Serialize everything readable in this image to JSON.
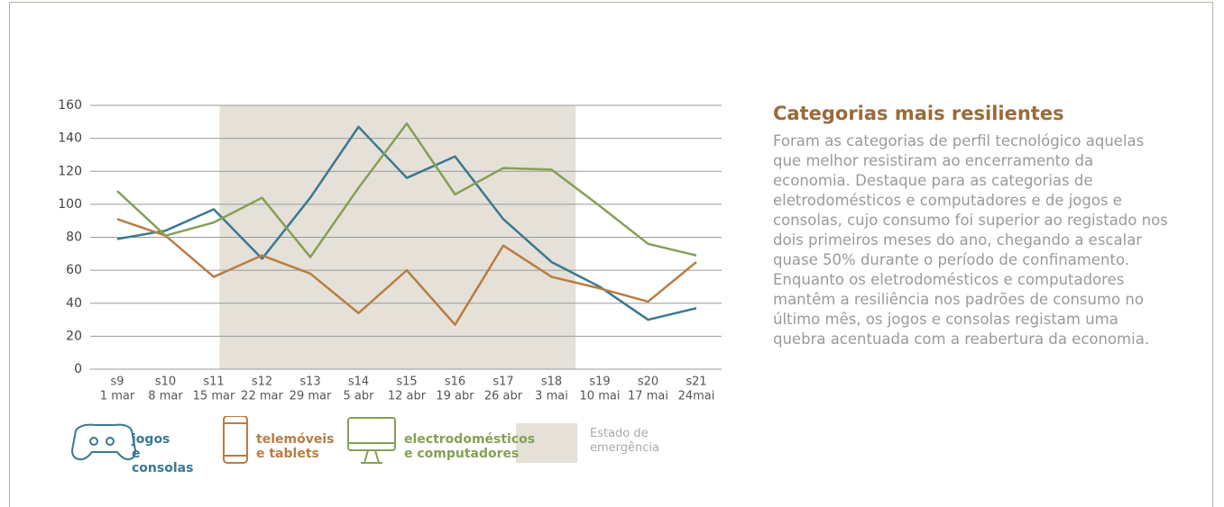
{
  "chart_data": {
    "type": "line",
    "categories": [
      "s9",
      "s10",
      "s11",
      "s12",
      "s13",
      "s14",
      "s15",
      "s16",
      "s17",
      "s18",
      "s19",
      "s20",
      "s21"
    ],
    "dates": [
      "1 mar",
      "8 mar",
      "15 mar",
      "22 mar",
      "29 mar",
      "5 abr",
      "12 abr",
      "19 abr",
      "26 abr",
      "3 mai",
      "10 mai",
      "17 mai",
      "24mai"
    ],
    "series": [
      {
        "name": "jogos\ne consolas",
        "color": "#3a7891",
        "values": [
          79,
          84,
          97,
          67,
          104,
          147,
          116,
          129,
          91,
          65,
          50,
          30,
          37
        ]
      },
      {
        "name": "telemóveis\ne tablets",
        "color": "#b87d43",
        "values": [
          91,
          81,
          56,
          69,
          58,
          34,
          60,
          27,
          75,
          56,
          49,
          41,
          65
        ]
      },
      {
        "name": "electrodomésticos\ne computadores",
        "color": "#85a055",
        "values": [
          108,
          81,
          89,
          104,
          68,
          110,
          149,
          106,
          122,
          121,
          99,
          76,
          69
        ]
      }
    ],
    "shade": {
      "label": "Estado de\nemergência",
      "from": "s12",
      "to": "s18",
      "color": "#e5e1d8"
    },
    "ylim": [
      0,
      160
    ],
    "yticks": [
      0,
      20,
      40,
      60,
      80,
      100,
      120,
      140,
      160
    ],
    "grid": true
  },
  "panel": {
    "title": "Categorias mais resilientes",
    "text": "Foram as categorias de perfil tecnológico aquelas que melhor resistiram ao encerramento da economia.  Destaque para as categorias de eletrodomésticos e computadores e de jogos e consolas, cujo consumo foi superior ao registado nos dois primeiros meses do ano, chegando a escalar quase 50% durante o período de confinamento. Enquanto os eletrodomésticos e computadores mantêm a resiliência nos padrões de consumo no último mês, os jogos e consolas registam uma quebra acentuada com a reabertura da economia."
  }
}
